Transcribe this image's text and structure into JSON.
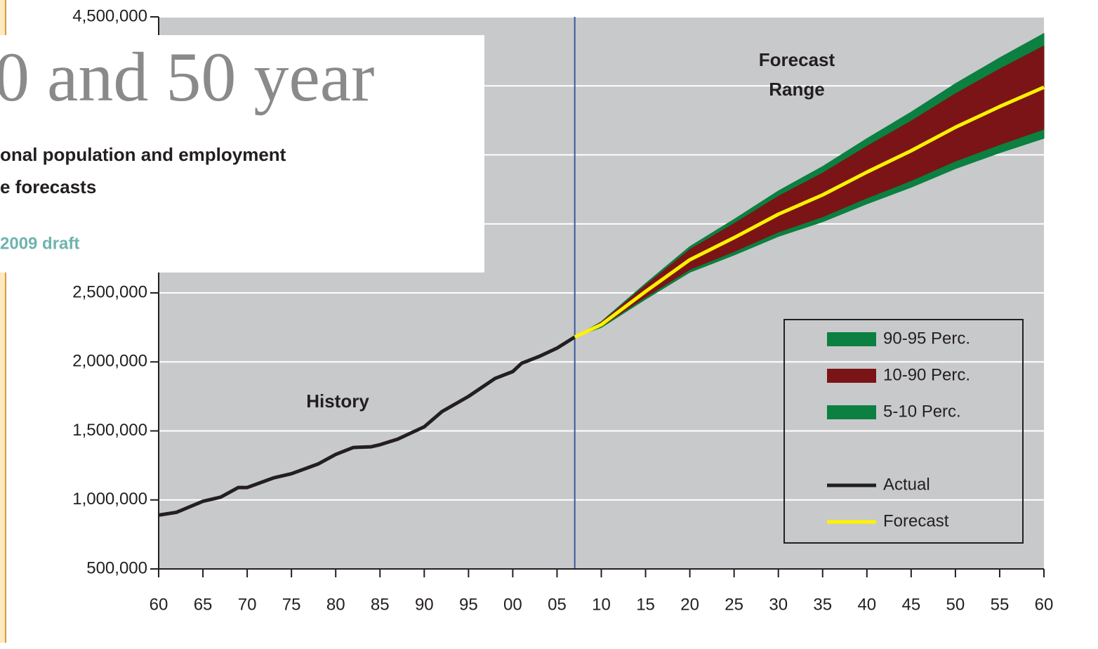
{
  "chart_data": {
    "type": "line",
    "annotations": [
      "History",
      "Forecast",
      "Range"
    ],
    "xlim": [
      1960,
      2060
    ],
    "xticks": [
      {
        "value": 1960,
        "label": "60"
      },
      {
        "value": 1965,
        "label": "65"
      },
      {
        "value": 1970,
        "label": "70"
      },
      {
        "value": 1975,
        "label": "75"
      },
      {
        "value": 1980,
        "label": "80"
      },
      {
        "value": 1985,
        "label": "85"
      },
      {
        "value": 1990,
        "label": "90"
      },
      {
        "value": 1995,
        "label": "95"
      },
      {
        "value": 2000,
        "label": "00"
      },
      {
        "value": 2005,
        "label": "05"
      },
      {
        "value": 2010,
        "label": "10"
      },
      {
        "value": 2015,
        "label": "15"
      },
      {
        "value": 2020,
        "label": "20"
      },
      {
        "value": 2025,
        "label": "25"
      },
      {
        "value": 2030,
        "label": "30"
      },
      {
        "value": 2035,
        "label": "35"
      },
      {
        "value": 2040,
        "label": "40"
      },
      {
        "value": 2045,
        "label": "45"
      },
      {
        "value": 2050,
        "label": "50"
      },
      {
        "value": 2055,
        "label": "55"
      },
      {
        "value": 2060,
        "label": "60"
      }
    ],
    "ylim": [
      500000,
      4500000
    ],
    "yticks": [
      {
        "value": 500000,
        "label": "500,000"
      },
      {
        "value": 1000000,
        "label": "1,000,000"
      },
      {
        "value": 1500000,
        "label": "1,500,000"
      },
      {
        "value": 2000000,
        "label": "2,000,000"
      },
      {
        "value": 2500000,
        "label": "2,500,000"
      },
      {
        "value": 3000000,
        "label": "3,000,000"
      },
      {
        "value": 3500000,
        "label": "3,500,000"
      },
      {
        "value": 4000000,
        "label": "4,000,000"
      },
      {
        "value": 4500000,
        "label": "4,500,000"
      }
    ],
    "grid": true,
    "divider_x": 2007,
    "series": [
      {
        "name": "90-95 Perc.",
        "kind": "band",
        "color": "#0b8041",
        "x": [
          2007,
          2010,
          2015,
          2020,
          2025,
          2030,
          2035,
          2040,
          2045,
          2050,
          2055,
          2060
        ],
        "lower": [
          2180000,
          2287000,
          2555000,
          2814000,
          3002000,
          3200000,
          3368000,
          3562000,
          3745000,
          3943000,
          4122000,
          4290000
        ],
        "upper": [
          2180000,
          2292000,
          2569000,
          2836000,
          3033000,
          3239000,
          3416000,
          3618000,
          3810000,
          4016000,
          4203000,
          4380000
        ]
      },
      {
        "name": "10-90 Perc.",
        "kind": "band",
        "color": "#7b1416",
        "x": [
          2007,
          2010,
          2015,
          2020,
          2025,
          2030,
          2035,
          2040,
          2045,
          2050,
          2055,
          2060
        ],
        "lower": [
          2180000,
          2252000,
          2463000,
          2664000,
          2795000,
          2935000,
          3046000,
          3182000,
          3308000,
          3449000,
          3569000,
          3680000
        ],
        "upper": [
          2180000,
          2287000,
          2555000,
          2814000,
          3002000,
          3200000,
          3368000,
          3562000,
          3745000,
          3943000,
          4122000,
          4290000
        ]
      },
      {
        "name": "5-10 Perc.",
        "kind": "band",
        "color": "#0b8041",
        "x": [
          2007,
          2010,
          2015,
          2020,
          2025,
          2030,
          2035,
          2040,
          2045,
          2050,
          2055,
          2060
        ],
        "lower": [
          2180000,
          2249000,
          2454000,
          2649000,
          2774000,
          2909000,
          3015000,
          3145000,
          3265000,
          3400000,
          3515000,
          3620000
        ],
        "upper": [
          2180000,
          2252000,
          2463000,
          2664000,
          2795000,
          2935000,
          3046000,
          3182000,
          3308000,
          3449000,
          3569000,
          3680000
        ]
      },
      {
        "name": "Actual",
        "kind": "line",
        "color": "#231f20",
        "x": [
          1960,
          1962,
          1965,
          1967,
          1969,
          1970,
          1973,
          1975,
          1978,
          1980,
          1982,
          1984,
          1985,
          1987,
          1990,
          1992,
          1995,
          1998,
          2000,
          2001,
          2003,
          2005,
          2007
        ],
        "values": [
          890000,
          910000,
          990000,
          1020000,
          1090000,
          1090000,
          1160000,
          1190000,
          1260000,
          1330000,
          1380000,
          1385000,
          1400000,
          1440000,
          1530000,
          1640000,
          1750000,
          1880000,
          1930000,
          1990000,
          2040000,
          2100000,
          2180000
        ]
      },
      {
        "name": "Forecast",
        "kind": "line",
        "color": "#fff200",
        "x": [
          2007,
          2010,
          2015,
          2020,
          2025,
          2030,
          2035,
          2040,
          2045,
          2050,
          2055,
          2060
        ],
        "values": [
          2180000,
          2270000,
          2510000,
          2740000,
          2900000,
          3070000,
          3210000,
          3375000,
          3530000,
          3700000,
          3850000,
          3990000
        ]
      }
    ]
  },
  "overlay": {
    "title": "0 and 50 year",
    "subtitle_lines": [
      "onal population and employment",
      "e forecasts"
    ],
    "note": "2009 draft"
  }
}
